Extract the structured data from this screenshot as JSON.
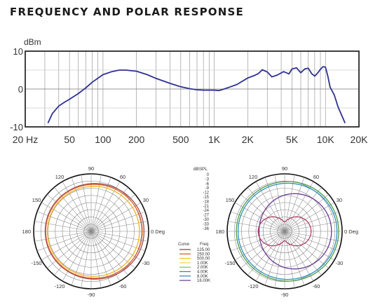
{
  "page_title": "FREQUENCY AND POLAR RESPONSE",
  "colors": {
    "response_line": "#2e3192",
    "grid": "#9a9a9a",
    "frame": "#111111"
  },
  "chart_data": [
    {
      "type": "line",
      "ylabel": "dBm",
      "x_scale": "log",
      "xlim": [
        20,
        20000
      ],
      "ylim": [
        -10,
        10
      ],
      "y_ticks": [
        "10",
        "0",
        "-10"
      ],
      "x_ticks": [
        {
          "value": 20,
          "label": "20 Hz"
        },
        {
          "value": 50,
          "label": "50"
        },
        {
          "value": 100,
          "label": "100"
        },
        {
          "value": 200,
          "label": "200"
        },
        {
          "value": 500,
          "label": "500"
        },
        {
          "value": 1000,
          "label": "1K"
        },
        {
          "value": 2000,
          "label": "2K"
        },
        {
          "value": 5000,
          "label": "5K"
        },
        {
          "value": 10000,
          "label": "10K"
        },
        {
          "value": 20000,
          "label": "20K"
        }
      ],
      "grid": true,
      "series": [
        {
          "x": [
            32,
            35,
            40,
            45,
            50,
            60,
            70,
            80,
            100,
            120,
            140,
            160,
            200,
            250,
            300,
            400,
            500,
            600,
            700,
            800,
            900,
            1000,
            1100,
            1200,
            1400,
            1600,
            2000,
            2300,
            2500,
            2700,
            3000,
            3300,
            3700,
            4200,
            4700,
            5000,
            5500,
            6000,
            6500,
            7000,
            7500,
            8000,
            8500,
            9000,
            9500,
            10000,
            10500,
            11000,
            12000,
            13000,
            15000
          ],
          "values": [
            -9,
            -6.5,
            -4.5,
            -3.5,
            -2.7,
            -1.2,
            0.3,
            1.8,
            3.8,
            4.6,
            5.0,
            5.0,
            4.7,
            3.8,
            2.8,
            1.5,
            0.6,
            0.1,
            -0.2,
            -0.3,
            -0.3,
            -0.3,
            -0.4,
            -0.1,
            0.6,
            1.2,
            2.9,
            3.6,
            4.1,
            5.1,
            4.5,
            3.2,
            3.7,
            4.6,
            4.0,
            5.3,
            5.6,
            4.3,
            5.3,
            5.5,
            4.1,
            3.4,
            4.2,
            5.2,
            5.9,
            5.8,
            3.4,
            0.5,
            -1.6,
            -4.8,
            -9.0
          ]
        }
      ]
    },
    {
      "type": "polar",
      "angle_labels": [
        "90",
        "60",
        "30",
        "0 Deg",
        "-30",
        "-60",
        "-90",
        "-120",
        "-150",
        "180",
        "150",
        "120"
      ],
      "series": [
        {
          "color": "#9a4e56",
          "r0": 0.86,
          "a": 0.12,
          "p": 2
        },
        {
          "color": "#d95f2a",
          "r0": 0.84,
          "a": 0.1,
          "p": 2
        },
        {
          "color": "#f2b21f",
          "r0": 0.8,
          "a": 0.08,
          "p": 1.8
        }
      ]
    },
    {
      "type": "polar",
      "scale_label": "dBSPL",
      "scale_ticks": [
        "0",
        "-3",
        "-6",
        "-9",
        "-12",
        "-15",
        "-18",
        "-21",
        "-24",
        "-27",
        "-30",
        "-33",
        "-36"
      ],
      "legend_header": {
        "curve": "Curve",
        "freq": "Freq"
      },
      "legend": [
        {
          "color": "#8b3a3a",
          "freq": "125.00"
        },
        {
          "color": "#d9531e",
          "freq": "250.00"
        },
        {
          "color": "#f2c318",
          "freq": "500.00"
        },
        {
          "color": "#f3d24a",
          "freq": "1.00K"
        },
        {
          "color": "#7cc243",
          "freq": "2.00K"
        },
        {
          "color": "#1c9a6c",
          "freq": "4.00K"
        },
        {
          "color": "#2f7fc1",
          "freq": "8.00K"
        },
        {
          "color": "#6a3a8f",
          "freq": "16.00K"
        }
      ],
      "angle_labels": [
        "90",
        "60",
        "30",
        "0 Deg",
        "-30",
        "-60",
        "-90",
        "-120",
        "-150",
        "180",
        "150",
        "120"
      ],
      "series": [
        {
          "color": "#4f9a46",
          "r0": 0.89,
          "a": 0.1,
          "p": 2
        },
        {
          "color": "#2f8fbf",
          "r0": 0.86,
          "a": 0.1,
          "p": 2
        },
        {
          "color": "#6a3a8f",
          "r0": 0.63,
          "a": 0.37,
          "p": 1
        },
        {
          "color": "#b0406a",
          "kind": "figure8"
        }
      ]
    }
  ]
}
